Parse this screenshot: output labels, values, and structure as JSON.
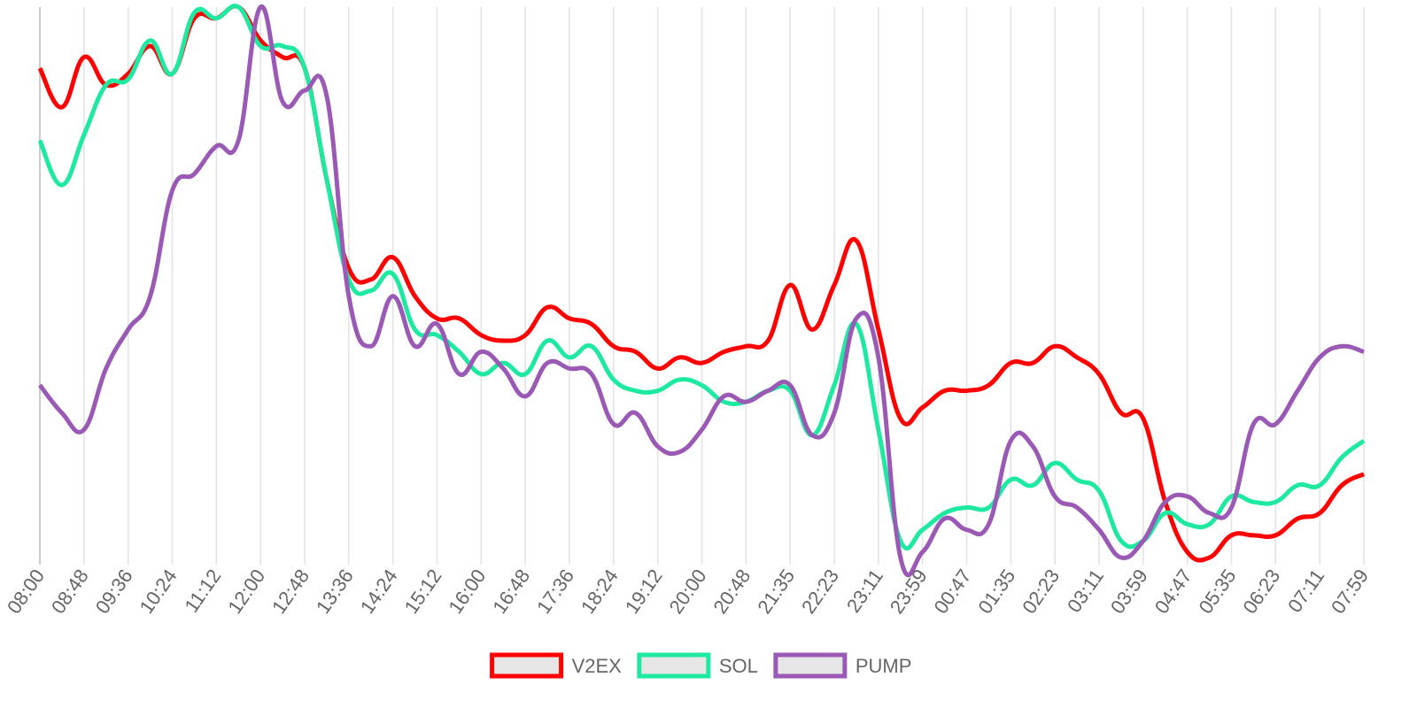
{
  "chart_data": {
    "type": "line",
    "categories": [
      "08:00",
      null,
      "08:48",
      null,
      "09:36",
      null,
      "10:24",
      null,
      "11:12",
      null,
      "12:00",
      null,
      "12:48",
      null,
      "13:36",
      null,
      "14:24",
      null,
      "15:12",
      null,
      "16:00",
      null,
      "16:48",
      null,
      "17:36",
      null,
      "18:24",
      null,
      "19:12",
      null,
      "20:00",
      null,
      "20:48",
      null,
      "21:35",
      null,
      "22:23",
      null,
      "23:11",
      null,
      "23:59",
      null,
      "00:47",
      null,
      "01:35",
      null,
      "02:23",
      null,
      "03:11",
      null,
      "03:59",
      null,
      "04:47",
      null,
      "05:35",
      null,
      "06:23",
      null,
      "07:11",
      null,
      "07:59"
    ],
    "series": [
      {
        "name": "V2EX",
        "color": "#ff0000",
        "values": [
          89,
          82,
          91,
          86,
          88,
          93,
          88,
          98,
          98,
          100,
          94,
          91,
          89,
          69,
          53,
          51,
          55,
          48,
          44,
          44,
          41,
          40,
          41,
          46,
          44,
          43,
          39,
          38,
          35,
          37,
          36,
          38,
          39,
          40,
          50,
          42,
          50,
          58,
          42,
          26,
          28,
          31,
          31,
          32,
          36,
          36,
          39,
          37,
          34,
          27,
          26,
          11,
          2,
          1,
          5,
          5,
          5,
          8,
          9,
          14,
          16
        ]
      },
      {
        "name": "SOL",
        "color": "#1de9a0",
        "values": [
          76,
          68,
          77,
          86,
          87,
          94,
          88,
          99,
          98,
          100,
          93,
          93,
          89,
          69,
          51,
          49,
          52,
          42,
          41,
          38,
          34,
          36,
          34,
          40,
          37,
          39,
          33,
          31,
          31,
          33,
          32,
          29,
          29,
          31,
          31,
          23,
          32,
          43,
          24,
          4,
          6,
          9,
          10,
          10,
          15,
          14,
          18,
          15,
          13,
          4,
          4,
          9,
          7,
          7,
          12,
          11,
          11,
          14,
          14,
          19,
          22
        ]
      },
      {
        "name": "PUMP",
        "color": "#9b59b6",
        "values": [
          32,
          27,
          24,
          35,
          42,
          48,
          67,
          70,
          75,
          76,
          100,
          83,
          85,
          84,
          48,
          39,
          48,
          39,
          43,
          34,
          38,
          35,
          30,
          36,
          35,
          34,
          25,
          27,
          21,
          20,
          24,
          30,
          29,
          31,
          32,
          23,
          27,
          44,
          37,
          1,
          2,
          8,
          6,
          7,
          22,
          21,
          12,
          10,
          6,
          1,
          4,
          11,
          12,
          9,
          10,
          25,
          25,
          31,
          37,
          39,
          38
        ]
      }
    ]
  }
}
